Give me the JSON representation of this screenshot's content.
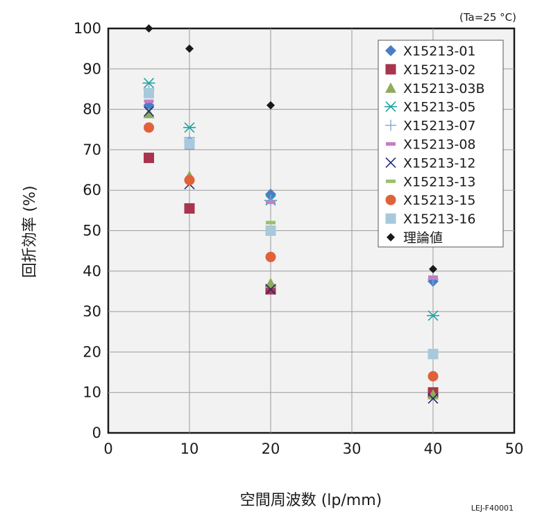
{
  "chart_data": {
    "type": "scatter",
    "xlabel": "空間周波数 (lp/mm)",
    "ylabel": "回折効率 (%)",
    "xlim": [
      0,
      50
    ],
    "ylim": [
      0,
      100
    ],
    "xticks": [
      0,
      10,
      20,
      30,
      40,
      50
    ],
    "yticks": [
      0,
      10,
      20,
      30,
      40,
      50,
      60,
      70,
      80,
      90,
      100
    ],
    "grid": true,
    "legend_position": "top-right",
    "condition_note": "(Ta=25 °C)",
    "figure_code": "LEJ-F40001",
    "series": [
      {
        "name": "X15213-01",
        "marker": "diamond",
        "color": "#4a7ec4",
        "x": [
          5,
          10,
          20,
          40
        ],
        "y": [
          81,
          72,
          59,
          37.5
        ]
      },
      {
        "name": "X15213-02",
        "marker": "square",
        "color": "#a8344e",
        "x": [
          5,
          10,
          20,
          40
        ],
        "y": [
          68,
          55.5,
          35.5,
          10
        ]
      },
      {
        "name": "X15213-03B",
        "marker": "triangle",
        "color": "#8fac5a",
        "x": [
          5,
          10,
          20,
          40
        ],
        "y": [
          79,
          63.5,
          37,
          9.5
        ]
      },
      {
        "name": "X15213-05",
        "marker": "asterisk",
        "color": "#1fa3a0",
        "x": [
          5,
          10,
          20,
          40
        ],
        "y": [
          86.5,
          75.5,
          57.5,
          29
        ]
      },
      {
        "name": "X15213-07",
        "marker": "plus",
        "color": "#7fa9d6",
        "x": [
          5,
          10,
          20,
          40
        ],
        "y": [
          85,
          73,
          57.5,
          38
        ]
      },
      {
        "name": "X15213-08",
        "marker": "dash",
        "color": "#c87cc4",
        "x": [
          5,
          10,
          20,
          40
        ],
        "y": [
          82,
          70.5,
          57,
          38.5
        ]
      },
      {
        "name": "X15213-12",
        "marker": "x",
        "color": "#1d2a7a",
        "x": [
          5,
          10,
          20,
          40
        ],
        "y": [
          79.5,
          61.5,
          35.5,
          8.5
        ]
      },
      {
        "name": "X15213-13",
        "marker": "dash",
        "color": "#9cc06a",
        "x": [
          5,
          10,
          20,
          40
        ],
        "y": [
          84.5,
          71.5,
          52,
          20
        ]
      },
      {
        "name": "X15213-15",
        "marker": "circle",
        "color": "#e0623a",
        "x": [
          5,
          10,
          20,
          40
        ],
        "y": [
          75.5,
          62.5,
          43.5,
          14
        ]
      },
      {
        "name": "X15213-16",
        "marker": "square",
        "color": "#a7c9dc",
        "x": [
          5,
          10,
          20,
          40
        ],
        "y": [
          84,
          71.5,
          50,
          19.5
        ]
      },
      {
        "name": "理論値",
        "marker": "diamond-small",
        "color": "#1a1a1a",
        "x": [
          5,
          10,
          20,
          40
        ],
        "y": [
          100,
          95,
          81,
          40.5
        ]
      }
    ]
  }
}
